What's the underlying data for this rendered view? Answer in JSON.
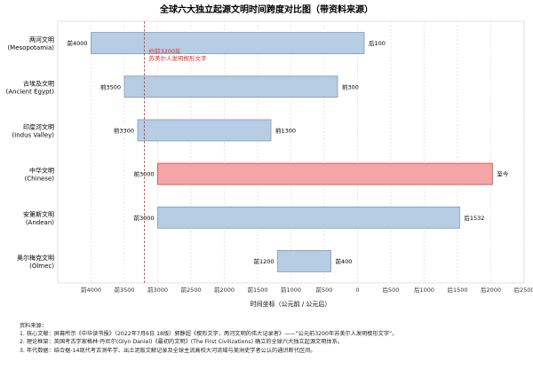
{
  "chart_data": {
    "type": "gantt",
    "title": "全球六大独立起源文明时间跨度对比图（带资料来源）",
    "xlabel": "时间坐标（公元前 / 公元后）",
    "xlim": [
      -4500,
      2500
    ],
    "xticks": [
      {
        "value": -4000,
        "label": "前4000"
      },
      {
        "value": -3500,
        "label": "前3500"
      },
      {
        "value": -3000,
        "label": "前3000"
      },
      {
        "value": -2500,
        "label": "前2500"
      },
      {
        "value": -2000,
        "label": "前2000"
      },
      {
        "value": -1500,
        "label": "前1500"
      },
      {
        "value": -1000,
        "label": "前1000"
      },
      {
        "value": -500,
        "label": "前500"
      },
      {
        "value": 0,
        "label": "0"
      },
      {
        "value": 500,
        "label": "后500"
      },
      {
        "value": 1000,
        "label": "后1000"
      },
      {
        "value": 1500,
        "label": "后1500"
      },
      {
        "value": 2000,
        "label": "后2000"
      },
      {
        "value": 2500,
        "label": "后2500"
      }
    ],
    "grid": "vertical-dashed",
    "rows": [
      {
        "name": "两河文明",
        "name_en": "(Mesopotamia)",
        "start": -4000,
        "end": 100,
        "start_label": "前4000",
        "end_label": "后100",
        "color": "#b6cde3"
      },
      {
        "name": "古埃及文明",
        "name_en": "(Ancient Egypt)",
        "start": -3500,
        "end": -300,
        "start_label": "前3500",
        "end_label": "前300",
        "color": "#b6cde3"
      },
      {
        "name": "印度河文明",
        "name_en": "(Indus Valley)",
        "start": -3300,
        "end": -1300,
        "start_label": "前3300",
        "end_label": "前1300",
        "color": "#b6cde3"
      },
      {
        "name": "中华文明",
        "name_en": "(Chinese)",
        "start": -3000,
        "end": 2025,
        "start_label": "前3000",
        "end_label": "至今",
        "color": "#f5a5a5"
      },
      {
        "name": "安第斯文明",
        "name_en": "(Andean)",
        "start": -3000,
        "end": 1532,
        "start_label": "前3000",
        "end_label": "后1532",
        "color": "#b6cde3"
      },
      {
        "name": "奥尔梅克文明",
        "name_en": "(Olmec)",
        "start": -1200,
        "end": -400,
        "start_label": "前1200",
        "end_label": "前400",
        "color": "#b6cde3"
      }
    ],
    "reference_line": {
      "value": -3200,
      "label1": "约前3200年",
      "label2": "苏美尔人发明楔形文字",
      "color": "#e0302a"
    }
  },
  "notes": {
    "heading": "资料来源：",
    "items": [
      "1. 核心文献：屏幕所示《中华读书报》（2022年7月6日 18版）郭静超《楔形文字，两河文明的伟大记录者》——“公元前3200年苏美尔人发明楔形文字”。",
      "2. 理论框架：英国考古学家格林·丹尼尔(Glyn Daniel)《最初的文明》(The First Civilizations) 确立的全球六大独立起源文明体系。",
      "3. 年代数据：结合据-14现代考古测年学、出土泥版文献记录及全球主流高校大河流域与美洲史学者公认的通识断代区间。"
    ]
  }
}
